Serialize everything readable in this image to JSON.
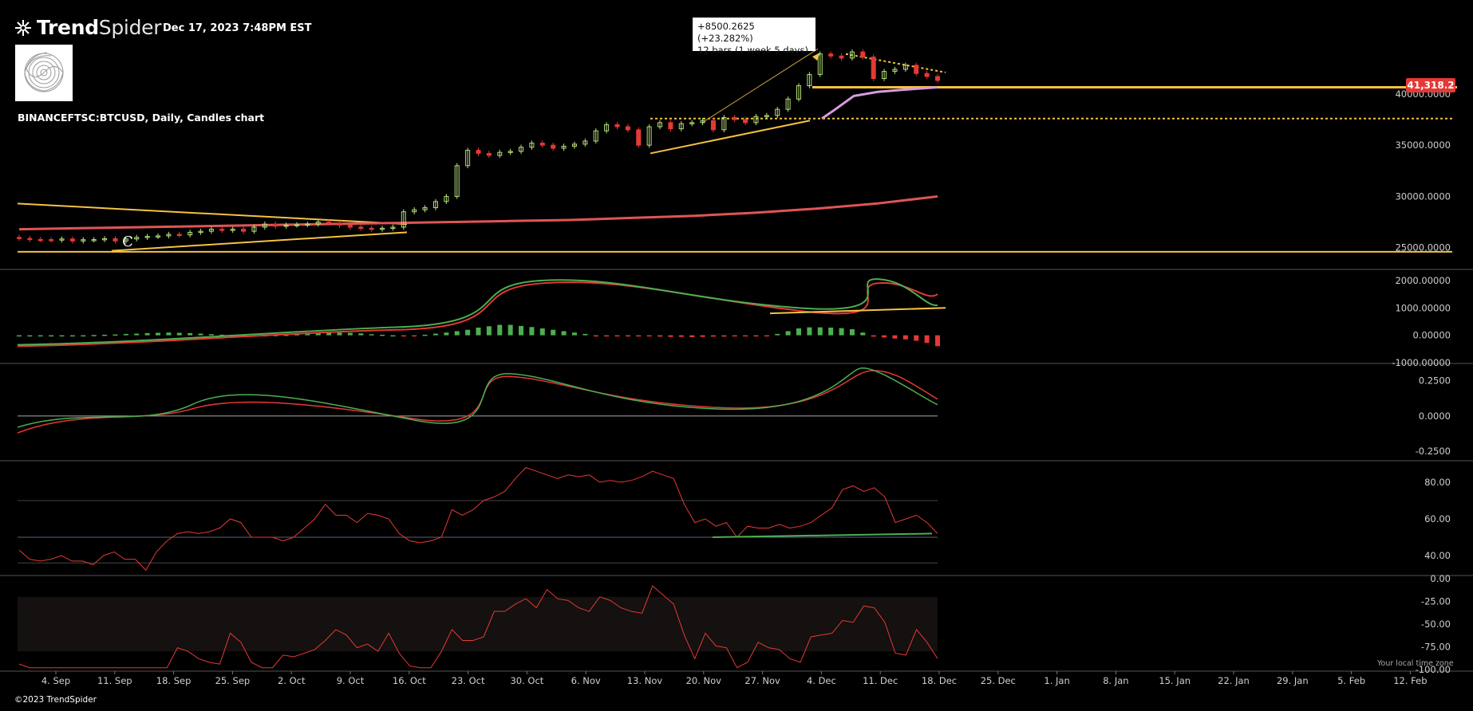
{
  "app": {
    "brand_name_bold": "Trend",
    "brand_name_rest": "Spider",
    "timestamp": "Dec 17, 2023 7:48PM EST",
    "symbol_line": "BINANCEFTSC:BTCUSD, Daily, Candles chart",
    "copyright": "©2023 TrendSpider",
    "timezone_note": "Your local time zone"
  },
  "colors": {
    "background": "#000000",
    "up_candle": "#b5e07a",
    "down_candle": "#e53935",
    "trendline": "#f5c242",
    "ma_red": "#e05555",
    "ma_pink": "#d89be0",
    "macd_green": "#4caf50",
    "macd_red": "#e53935",
    "price_tag": "#e53935"
  },
  "measurement": {
    "line1": "+8500.2625 (+23.282%)",
    "line2": "12 bars (1 week 5 days)"
  },
  "current_price_label": "41,318.2",
  "pattern_label": "C",
  "chart_data": {
    "type": "candlestick",
    "title": "BINANCEFTSC:BTCUSD, Daily, Candles chart",
    "x_dates": [
      "4. Sep",
      "11. Sep",
      "18. Sep",
      "25. Sep",
      "2. Oct",
      "9. Oct",
      "16. Oct",
      "23. Oct",
      "30. Oct",
      "6. Nov",
      "13. Nov",
      "20. Nov",
      "27. Nov",
      "4. Dec",
      "11. Dec",
      "18. Dec",
      "25. Dec",
      "1. Jan",
      "8. Jan",
      "15. Jan",
      "22. Jan",
      "29. Jan",
      "5. Feb",
      "12. Feb"
    ],
    "price_ticks": [
      "40000.0000",
      "35000.0000",
      "30000.0000",
      "25000.0000"
    ],
    "price_ylim": [
      23500,
      44500
    ],
    "closes": [
      25900,
      25800,
      25790,
      25750,
      25850,
      25650,
      25780,
      25790,
      25880,
      25650,
      25850,
      26000,
      26100,
      26150,
      26300,
      26250,
      26500,
      26600,
      26800,
      26700,
      26800,
      26600,
      27000,
      27300,
      27100,
      27200,
      27250,
      27300,
      27500,
      27400,
      27200,
      27000,
      26900,
      26800,
      26900,
      27000,
      28500,
      28700,
      28900,
      29500,
      30000,
      33000,
      34500,
      34200,
      34000,
      34300,
      34400,
      34800,
      35200,
      35000,
      34700,
      34900,
      35100,
      35400,
      36400,
      37000,
      36800,
      36500,
      35000,
      36800,
      37200,
      36600,
      37100,
      37200,
      37400,
      36500,
      37700,
      37500,
      37200,
      37800,
      37900,
      38500,
      39500,
      40800,
      41900,
      43900,
      43700,
      43500,
      44100,
      43600,
      41500,
      42200,
      42400,
      42800,
      42000,
      41700,
      41318
    ],
    "ma200": [
      26800,
      26900,
      27000,
      27100,
      27200,
      27300,
      27400,
      27500,
      27600,
      27700,
      27900,
      28100,
      28400,
      28800,
      29300,
      30000
    ],
    "macd_ticks": [
      "2000.00000",
      "1000.00000",
      "0.00000",
      "-1000.00000"
    ],
    "osc2_ticks": [
      "0.2500",
      "0.0000",
      "-0.2500"
    ],
    "rsi_ticks": [
      "80.00",
      "60.00",
      "40.00"
    ],
    "willr_ticks": [
      "0.00",
      "-25.00",
      "-50.00",
      "-75.00",
      "-100.00"
    ],
    "macd_hist": [
      0,
      0,
      0,
      0,
      0,
      0,
      0,
      10,
      20,
      30,
      50,
      60,
      80,
      90,
      100,
      90,
      80,
      60,
      40,
      20,
      10,
      0,
      -20,
      -30,
      10,
      20,
      40,
      60,
      90,
      110,
      100,
      90,
      70,
      40,
      20,
      0,
      -20,
      -30,
      20,
      60,
      100,
      150,
      200,
      280,
      330,
      380,
      380,
      340,
      300,
      250,
      200,
      150,
      100,
      50,
      -20,
      -40,
      -30,
      -20,
      -40,
      -40,
      -50,
      -60,
      -60,
      -70,
      -60,
      -50,
      -50,
      -40,
      -40,
      -30,
      -20,
      50,
      150,
      250,
      290,
      290,
      280,
      260,
      220,
      100,
      -50,
      -80,
      -120,
      -150,
      -200,
      -280,
      -400
    ],
    "rsi_values": [
      43,
      38,
      37,
      38,
      40,
      37,
      37,
      35,
      40,
      42,
      38,
      38,
      32,
      42,
      48,
      52,
      53,
      52,
      53,
      55,
      60,
      58,
      50,
      50,
      50,
      48,
      50,
      55,
      60,
      68,
      62,
      62,
      58,
      63,
      62,
      60,
      52,
      48,
      47,
      48,
      50,
      65,
      62,
      65,
      70,
      72,
      75,
      82,
      88,
      86,
      84,
      82,
      84,
      83,
      84,
      80,
      81,
      80,
      81,
      83,
      86,
      84,
      82,
      68,
      58,
      60,
      56,
      58,
      50,
      56,
      55,
      55,
      57,
      55,
      56,
      58,
      62,
      66,
      76,
      78,
      75,
      77,
      72,
      58,
      60,
      62,
      58,
      52
    ]
  }
}
